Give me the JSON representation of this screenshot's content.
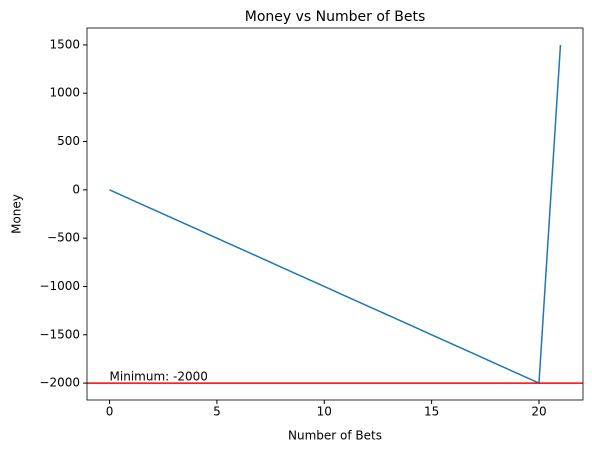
{
  "chart_data": {
    "type": "line",
    "title": "Money vs Number of Bets",
    "xlabel": "Number of Bets",
    "ylabel": "Money",
    "x": [
      0,
      1,
      2,
      3,
      4,
      5,
      6,
      7,
      8,
      9,
      10,
      11,
      12,
      13,
      14,
      15,
      16,
      17,
      18,
      19,
      20,
      21
    ],
    "series": [
      {
        "name": "Money",
        "color": "#1f77b4",
        "values": [
          0,
          -100,
          -200,
          -300,
          -400,
          -500,
          -600,
          -700,
          -800,
          -900,
          -1000,
          -1100,
          -1200,
          -1300,
          -1400,
          -1500,
          -1600,
          -1700,
          -1800,
          -1900,
          -2000,
          1500
        ]
      }
    ],
    "hline": {
      "value": -2000,
      "color": "#ff0000"
    },
    "annotation": {
      "text": "Minimum: -2000",
      "x": 0,
      "y": -2000
    },
    "xlim": [
      -1.05,
      22.05
    ],
    "xticks": [
      0,
      5,
      10,
      15,
      20
    ],
    "ylim": [
      -2175,
      1675
    ],
    "yticks": [
      {
        "value": -2000,
        "label": "−2000"
      },
      {
        "value": -1500,
        "label": "−1500"
      },
      {
        "value": -1000,
        "label": "−1000"
      },
      {
        "value": -500,
        "label": "−500"
      },
      0,
      500,
      1000,
      1500
    ],
    "grid": false
  }
}
